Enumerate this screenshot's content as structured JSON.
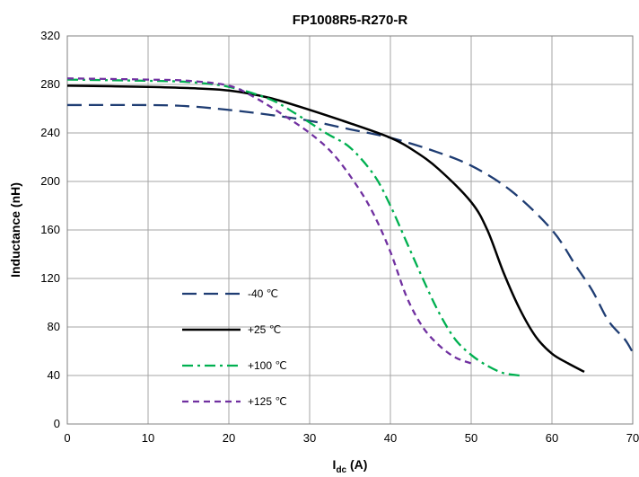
{
  "chart_data": {
    "type": "line",
    "title": "FP1008R5-R270-R",
    "xlabel_main": "I",
    "xlabel_sub": "dc",
    "xlabel_unit": " (A)",
    "ylabel": "Inductance (nH)",
    "xlim": [
      0,
      70
    ],
    "ylim": [
      0,
      320
    ],
    "xticks": [
      0,
      10,
      20,
      30,
      40,
      50,
      60,
      70
    ],
    "yticks": [
      0,
      40,
      80,
      120,
      160,
      200,
      240,
      280,
      320
    ],
    "grid": true,
    "legend_position": "lower-left",
    "series": [
      {
        "name": "-40 ℃",
        "color": "#1f3d73",
        "dash": "long-dash",
        "points": [
          [
            0,
            263
          ],
          [
            10,
            263
          ],
          [
            15,
            262
          ],
          [
            20,
            259
          ],
          [
            25,
            255
          ],
          [
            30,
            250
          ],
          [
            35,
            243
          ],
          [
            40,
            236
          ],
          [
            45,
            226
          ],
          [
            50,
            213
          ],
          [
            55,
            192
          ],
          [
            60,
            160
          ],
          [
            63,
            130
          ],
          [
            65,
            110
          ],
          [
            67,
            85
          ],
          [
            69,
            70
          ],
          [
            70,
            59
          ]
        ]
      },
      {
        "name": "+25 ℃",
        "color": "#000000",
        "dash": "solid",
        "points": [
          [
            0,
            279
          ],
          [
            10,
            278
          ],
          [
            15,
            277
          ],
          [
            20,
            275
          ],
          [
            25,
            269
          ],
          [
            30,
            259
          ],
          [
            35,
            248
          ],
          [
            40,
            236
          ],
          [
            43,
            225
          ],
          [
            46,
            210
          ],
          [
            50,
            183
          ],
          [
            52,
            160
          ],
          [
            54,
            125
          ],
          [
            56,
            95
          ],
          [
            58,
            72
          ],
          [
            60,
            58
          ],
          [
            62,
            50
          ],
          [
            64,
            43
          ]
        ]
      },
      {
        "name": "+100 ℃",
        "color": "#00b050",
        "dash": "dash-dot",
        "points": [
          [
            0,
            284
          ],
          [
            10,
            283
          ],
          [
            15,
            282
          ],
          [
            20,
            278
          ],
          [
            25,
            268
          ],
          [
            28,
            257
          ],
          [
            32,
            240
          ],
          [
            35,
            228
          ],
          [
            38,
            205
          ],
          [
            40,
            180
          ],
          [
            42,
            150
          ],
          [
            44,
            120
          ],
          [
            46,
            92
          ],
          [
            48,
            70
          ],
          [
            50,
            57
          ],
          [
            52,
            48
          ],
          [
            54,
            42
          ],
          [
            56,
            40
          ]
        ]
      },
      {
        "name": "+125 ℃",
        "color": "#7030a0",
        "dash": "short-dash",
        "points": [
          [
            0,
            285
          ],
          [
            10,
            284
          ],
          [
            15,
            283
          ],
          [
            20,
            279
          ],
          [
            23,
            270
          ],
          [
            26,
            258
          ],
          [
            30,
            240
          ],
          [
            33,
            222
          ],
          [
            36,
            195
          ],
          [
            38,
            172
          ],
          [
            40,
            142
          ],
          [
            42,
            105
          ],
          [
            44,
            80
          ],
          [
            46,
            65
          ],
          [
            48,
            55
          ],
          [
            50,
            50
          ]
        ]
      }
    ]
  }
}
